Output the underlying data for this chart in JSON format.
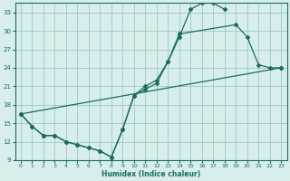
{
  "xlabel": "Humidex (Indice chaleur)",
  "bg_color": "#d8eeed",
  "grid_color": "#9ec8c4",
  "line_color": "#1a6b60",
  "xlim": [
    -0.5,
    23.5
  ],
  "ylim": [
    9,
    34.5
  ],
  "yticks": [
    9,
    12,
    15,
    18,
    21,
    24,
    27,
    30,
    33
  ],
  "xticks": [
    0,
    1,
    2,
    3,
    4,
    5,
    6,
    7,
    8,
    9,
    10,
    11,
    12,
    13,
    14,
    15,
    16,
    17,
    18,
    19,
    20,
    21,
    22,
    23
  ],
  "line1_x": [
    0,
    1,
    2,
    3,
    4,
    5,
    6,
    7,
    8,
    9,
    10,
    11,
    12,
    13,
    14,
    15,
    16,
    17,
    18
  ],
  "line1_y": [
    16.5,
    14.5,
    13.0,
    13.0,
    12.0,
    11.5,
    11.0,
    10.5,
    9.5,
    14.0,
    19.5,
    21.0,
    22.0,
    25.0,
    29.0,
    33.5,
    34.5,
    34.5,
    33.5
  ],
  "line2_x": [
    0,
    1,
    2,
    3,
    4,
    5,
    6,
    7,
    8,
    9,
    10,
    11,
    12,
    13,
    14,
    19,
    20,
    21,
    22,
    23
  ],
  "line2_y": [
    16.5,
    14.5,
    13.0,
    13.0,
    12.0,
    11.5,
    11.0,
    10.5,
    9.5,
    14.0,
    19.5,
    20.5,
    21.5,
    25.0,
    29.5,
    31.0,
    29.0,
    24.5,
    24.0,
    24.0
  ],
  "line3_x": [
    0,
    23
  ],
  "line3_y": [
    16.5,
    24.0
  ]
}
